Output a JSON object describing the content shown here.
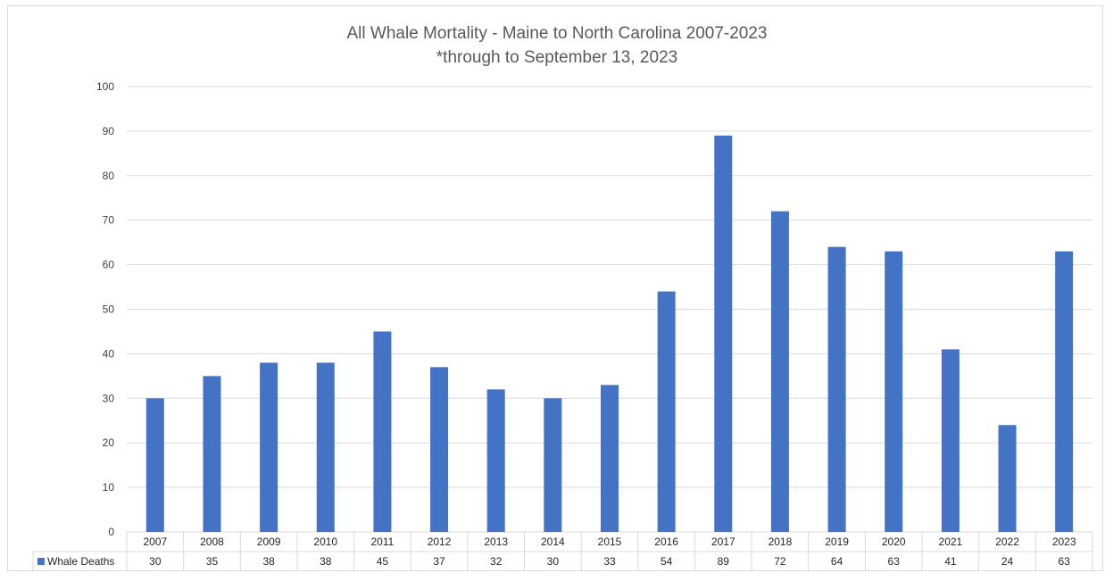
{
  "chart_data": {
    "type": "bar",
    "title": "All Whale Mortality - Maine to North Carolina 2007-2023",
    "subtitle": "*through to September 13, 2023",
    "categories": [
      "2007",
      "2008",
      "2009",
      "2010",
      "2011",
      "2012",
      "2013",
      "2014",
      "2015",
      "2016",
      "2017",
      "2018",
      "2019",
      "2020",
      "2021",
      "2022",
      "2023"
    ],
    "series": [
      {
        "name": "Whale Deaths",
        "color": "#4472c4",
        "values": [
          30,
          35,
          38,
          38,
          45,
          37,
          32,
          30,
          33,
          54,
          89,
          72,
          64,
          63,
          41,
          24,
          63
        ]
      }
    ],
    "y_ticks": [
      "0",
      "10",
      "20",
      "30",
      "40",
      "50",
      "60",
      "70",
      "80",
      "90",
      "100"
    ],
    "ylim": [
      0,
      100
    ],
    "grid": true,
    "data_table": true,
    "colors": {
      "bar": "#4472c4",
      "grid": "#d9d9d9",
      "text": "#595959"
    }
  }
}
